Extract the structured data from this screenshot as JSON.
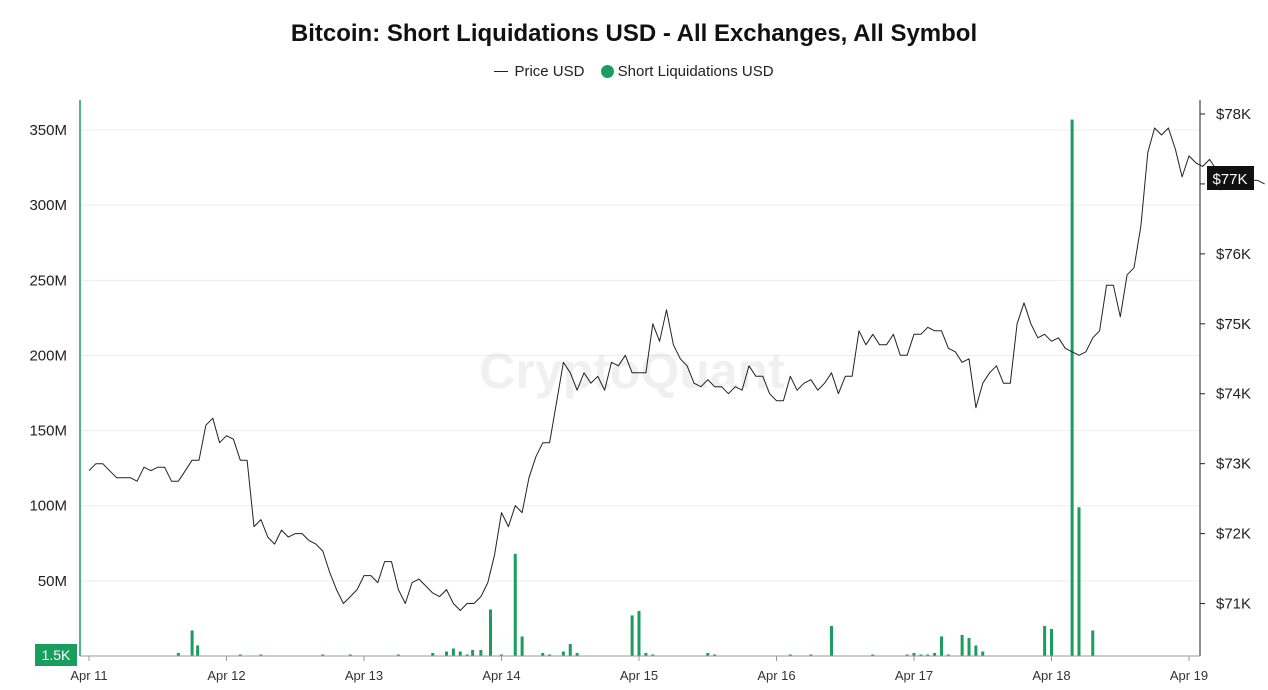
{
  "chart_data": {
    "type": "bar+line",
    "title": "Bitcoin: Short Liquidations USD - All Exchanges, All Symbol",
    "legend": {
      "placement": "top-center",
      "entries": [
        {
          "label": "Price USD",
          "marker": "line"
        },
        {
          "label": "Short Liquidations USD",
          "marker": "dot"
        }
      ]
    },
    "colors": {
      "price_line": "#222222",
      "liquidation_bars": "#1a9e5f",
      "left_axis": "#1a9e5f",
      "grid": "#eeeeee"
    },
    "watermark": "CryptoQuant",
    "grid": true,
    "x_ticks": [
      "Apr 11",
      "Apr 12",
      "Apr 13",
      "Apr 14",
      "Apr 15",
      "Apr 16",
      "Apr 17",
      "Apr 18",
      "Apr 19"
    ],
    "x_range_days": [
      0,
      8
    ],
    "left_axis": {
      "range": [
        0,
        370000000
      ],
      "ticks": [
        {
          "value": 50000000,
          "label": "50M"
        },
        {
          "value": 100000000,
          "label": "100M"
        },
        {
          "value": 150000000,
          "label": "150M"
        },
        {
          "value": 200000000,
          "label": "200M"
        },
        {
          "value": 250000000,
          "label": "250M"
        },
        {
          "value": 300000000,
          "label": "300M"
        },
        {
          "value": 350000000,
          "label": "350M"
        }
      ],
      "current_value_label": "1.5K"
    },
    "right_axis": {
      "range": [
        70250,
        78200
      ],
      "ticks": [
        {
          "value": 71000,
          "label": "$71K"
        },
        {
          "value": 72000,
          "label": "$72K"
        },
        {
          "value": 73000,
          "label": "$73K"
        },
        {
          "value": 74000,
          "label": "$74K"
        },
        {
          "value": 75000,
          "label": "$75K"
        },
        {
          "value": 76000,
          "label": "$76K"
        },
        {
          "value": 77000,
          "label": "$77K"
        },
        {
          "value": 78000,
          "label": "$78K"
        }
      ],
      "current_value_label": "$77K"
    },
    "series": [
      {
        "name": "Short Liquidations USD",
        "axis": "left",
        "kind": "bar",
        "points": [
          [
            0.65,
            2000000
          ],
          [
            0.75,
            17000000
          ],
          [
            0.79,
            7000000
          ],
          [
            1.1,
            1000000
          ],
          [
            1.25,
            1000000
          ],
          [
            1.7,
            1000000
          ],
          [
            1.9,
            1000000
          ],
          [
            2.25,
            1000000
          ],
          [
            2.5,
            2000000
          ],
          [
            2.6,
            3000000
          ],
          [
            2.65,
            5000000
          ],
          [
            2.7,
            3000000
          ],
          [
            2.75,
            1000000
          ],
          [
            2.79,
            4000000
          ],
          [
            2.85,
            4000000
          ],
          [
            2.92,
            31000000
          ],
          [
            3.0,
            1000000
          ],
          [
            3.1,
            68000000
          ],
          [
            3.15,
            13000000
          ],
          [
            3.3,
            2000000
          ],
          [
            3.35,
            1000000
          ],
          [
            3.45,
            3000000
          ],
          [
            3.5,
            8000000
          ],
          [
            3.55,
            2000000
          ],
          [
            3.95,
            27000000
          ],
          [
            4.0,
            30000000
          ],
          [
            4.05,
            2000000
          ],
          [
            4.1,
            1000000
          ],
          [
            4.5,
            2000000
          ],
          [
            4.55,
            1000000
          ],
          [
            5.1,
            1000000
          ],
          [
            5.25,
            1000000
          ],
          [
            5.4,
            20000000
          ],
          [
            5.7,
            1000000
          ],
          [
            5.95,
            1000000
          ],
          [
            6.0,
            2000000
          ],
          [
            6.05,
            1000000
          ],
          [
            6.1,
            1000000
          ],
          [
            6.15,
            2000000
          ],
          [
            6.2,
            13000000
          ],
          [
            6.25,
            1000000
          ],
          [
            6.35,
            14000000
          ],
          [
            6.4,
            12000000
          ],
          [
            6.45,
            7000000
          ],
          [
            6.5,
            3000000
          ],
          [
            6.95,
            20000000
          ],
          [
            7.0,
            18000000
          ],
          [
            7.15,
            357000000
          ],
          [
            7.2,
            99000000
          ],
          [
            7.3,
            17000000
          ]
        ]
      },
      {
        "name": "Price USD",
        "axis": "right",
        "kind": "line",
        "points": [
          [
            0.0,
            72900
          ],
          [
            0.05,
            73000
          ],
          [
            0.1,
            73000
          ],
          [
            0.15,
            72900
          ],
          [
            0.2,
            72800
          ],
          [
            0.25,
            72800
          ],
          [
            0.3,
            72800
          ],
          [
            0.35,
            72750
          ],
          [
            0.4,
            72950
          ],
          [
            0.45,
            72900
          ],
          [
            0.5,
            72950
          ],
          [
            0.55,
            72950
          ],
          [
            0.6,
            72750
          ],
          [
            0.65,
            72750
          ],
          [
            0.7,
            72900
          ],
          [
            0.75,
            73050
          ],
          [
            0.8,
            73050
          ],
          [
            0.85,
            73550
          ],
          [
            0.9,
            73650
          ],
          [
            0.95,
            73300
          ],
          [
            1.0,
            73400
          ],
          [
            1.05,
            73350
          ],
          [
            1.1,
            73050
          ],
          [
            1.15,
            73050
          ],
          [
            1.2,
            72100
          ],
          [
            1.25,
            72200
          ],
          [
            1.3,
            71950
          ],
          [
            1.35,
            71850
          ],
          [
            1.4,
            72050
          ],
          [
            1.45,
            71950
          ],
          [
            1.5,
            72000
          ],
          [
            1.55,
            72000
          ],
          [
            1.6,
            71900
          ],
          [
            1.65,
            71850
          ],
          [
            1.7,
            71750
          ],
          [
            1.75,
            71450
          ],
          [
            1.8,
            71200
          ],
          [
            1.85,
            71000
          ],
          [
            1.9,
            71100
          ],
          [
            1.95,
            71200
          ],
          [
            2.0,
            71400
          ],
          [
            2.05,
            71400
          ],
          [
            2.1,
            71300
          ],
          [
            2.15,
            71600
          ],
          [
            2.2,
            71600
          ],
          [
            2.25,
            71200
          ],
          [
            2.3,
            71000
          ],
          [
            2.35,
            71300
          ],
          [
            2.4,
            71350
          ],
          [
            2.45,
            71250
          ],
          [
            2.5,
            71150
          ],
          [
            2.55,
            71100
          ],
          [
            2.6,
            71200
          ],
          [
            2.65,
            71000
          ],
          [
            2.7,
            70900
          ],
          [
            2.75,
            71000
          ],
          [
            2.8,
            71000
          ],
          [
            2.85,
            71100
          ],
          [
            2.9,
            71300
          ],
          [
            2.95,
            71700
          ],
          [
            3.0,
            72300
          ],
          [
            3.05,
            72100
          ],
          [
            3.1,
            72400
          ],
          [
            3.15,
            72300
          ],
          [
            3.2,
            72800
          ],
          [
            3.25,
            73100
          ],
          [
            3.3,
            73300
          ],
          [
            3.35,
            73300
          ],
          [
            3.45,
            74450
          ],
          [
            3.5,
            74300
          ],
          [
            3.55,
            74050
          ],
          [
            3.6,
            74300
          ],
          [
            3.65,
            74150
          ],
          [
            3.7,
            74250
          ],
          [
            3.75,
            74050
          ],
          [
            3.8,
            74450
          ],
          [
            3.85,
            74400
          ],
          [
            3.9,
            74550
          ],
          [
            3.95,
            74300
          ],
          [
            4.05,
            74300
          ],
          [
            4.1,
            75000
          ],
          [
            4.15,
            74750
          ],
          [
            4.2,
            75200
          ],
          [
            4.25,
            74700
          ],
          [
            4.3,
            74500
          ],
          [
            4.35,
            74400
          ],
          [
            4.4,
            74150
          ],
          [
            4.45,
            74100
          ],
          [
            4.5,
            74200
          ],
          [
            4.55,
            74100
          ],
          [
            4.6,
            74100
          ],
          [
            4.65,
            74000
          ],
          [
            4.7,
            74100
          ],
          [
            4.75,
            74050
          ],
          [
            4.8,
            74400
          ],
          [
            4.85,
            74250
          ],
          [
            4.9,
            74250
          ],
          [
            4.95,
            74000
          ],
          [
            5.0,
            73900
          ],
          [
            5.05,
            73900
          ],
          [
            5.1,
            74250
          ],
          [
            5.15,
            74050
          ],
          [
            5.2,
            74150
          ],
          [
            5.25,
            74200
          ],
          [
            5.3,
            74050
          ],
          [
            5.35,
            74150
          ],
          [
            5.4,
            74300
          ],
          [
            5.45,
            74000
          ],
          [
            5.5,
            74250
          ],
          [
            5.55,
            74250
          ],
          [
            5.6,
            74900
          ],
          [
            5.65,
            74700
          ],
          [
            5.7,
            74850
          ],
          [
            5.75,
            74700
          ],
          [
            5.8,
            74700
          ],
          [
            5.85,
            74850
          ],
          [
            5.9,
            74550
          ],
          [
            5.95,
            74550
          ],
          [
            6.0,
            74850
          ],
          [
            6.05,
            74850
          ],
          [
            6.1,
            74950
          ],
          [
            6.15,
            74900
          ],
          [
            6.2,
            74900
          ],
          [
            6.25,
            74650
          ],
          [
            6.3,
            74600
          ],
          [
            6.35,
            74450
          ],
          [
            6.4,
            74500
          ],
          [
            6.45,
            73800
          ],
          [
            6.5,
            74150
          ],
          [
            6.55,
            74300
          ],
          [
            6.6,
            74400
          ],
          [
            6.65,
            74150
          ],
          [
            6.7,
            74150
          ],
          [
            6.75,
            75000
          ],
          [
            6.8,
            75300
          ],
          [
            6.85,
            75000
          ],
          [
            6.9,
            74800
          ],
          [
            6.95,
            74850
          ],
          [
            7.0,
            74750
          ],
          [
            7.05,
            74800
          ],
          [
            7.1,
            74650
          ],
          [
            7.15,
            74600
          ],
          [
            7.2,
            74550
          ],
          [
            7.25,
            74600
          ],
          [
            7.3,
            74800
          ],
          [
            7.35,
            74900
          ],
          [
            7.4,
            75550
          ],
          [
            7.45,
            75550
          ],
          [
            7.5,
            75100
          ],
          [
            7.55,
            75700
          ],
          [
            7.6,
            75800
          ],
          [
            7.65,
            76400
          ],
          [
            7.7,
            77450
          ],
          [
            7.75,
            77800
          ],
          [
            7.8,
            77700
          ],
          [
            7.85,
            77800
          ],
          [
            7.9,
            77500
          ],
          [
            7.95,
            77100
          ],
          [
            8.0,
            77400
          ],
          [
            8.05,
            77300
          ],
          [
            8.1,
            77250
          ],
          [
            8.15,
            77350
          ],
          [
            8.2,
            77200
          ],
          [
            8.25,
            77050
          ],
          [
            8.3,
            77150
          ],
          [
            8.35,
            77200
          ],
          [
            8.4,
            77000
          ],
          [
            8.45,
            77050
          ],
          [
            8.5,
            77050
          ],
          [
            8.55,
            77000
          ]
        ]
      }
    ]
  }
}
